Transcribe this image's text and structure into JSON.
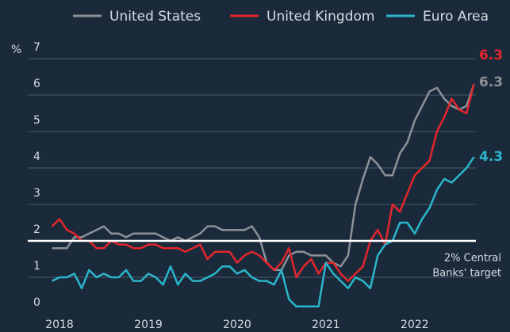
{
  "chart_data": {
    "type": "line",
    "y_label": "%",
    "categories": [
      null,
      "2018",
      null,
      null,
      null,
      null,
      null,
      null,
      null,
      null,
      null,
      null,
      null,
      "2019",
      null,
      null,
      null,
      null,
      null,
      null,
      null,
      null,
      null,
      null,
      null,
      "2020",
      null,
      null,
      null,
      null,
      null,
      null,
      null,
      null,
      null,
      null,
      null,
      "2021",
      null,
      null,
      null,
      null,
      null,
      null,
      null,
      null,
      null,
      null,
      null,
      "2022",
      null,
      null,
      null,
      null,
      null,
      null,
      null,
      null
    ],
    "series": [
      {
        "name": "United States",
        "color": "#8c9197",
        "end_label": "6.3",
        "values": [
          1.8,
          1.8,
          1.8,
          2.1,
          2.1,
          2.2,
          2.3,
          2.4,
          2.2,
          2.2,
          2.1,
          2.2,
          2.2,
          2.2,
          2.2,
          2.1,
          2.0,
          2.1,
          2.0,
          2.1,
          2.2,
          2.4,
          2.4,
          2.3,
          2.3,
          2.3,
          2.3,
          2.4,
          2.1,
          1.4,
          1.2,
          1.2,
          1.6,
          1.7,
          1.7,
          1.6,
          1.6,
          1.6,
          1.4,
          1.3,
          1.6,
          3.0,
          3.7,
          4.3,
          4.1,
          3.8,
          3.8,
          4.4,
          4.7,
          5.3,
          5.7,
          6.1,
          6.2,
          5.9,
          5.7,
          5.6,
          5.7,
          6.3
        ]
      },
      {
        "name": "United Kingdom",
        "color": "#e3262d",
        "end_label": "6.3",
        "values": [
          2.4,
          2.6,
          2.3,
          2.2,
          2.0,
          2.0,
          1.8,
          1.8,
          2.0,
          1.9,
          1.9,
          1.8,
          1.8,
          1.9,
          1.9,
          1.8,
          1.8,
          1.8,
          1.7,
          1.8,
          1.9,
          1.5,
          1.7,
          1.7,
          1.7,
          1.4,
          1.6,
          1.7,
          1.6,
          1.4,
          1.2,
          1.4,
          1.8,
          1.0,
          1.3,
          1.5,
          1.1,
          1.4,
          1.4,
          1.1,
          0.9,
          1.1,
          1.3,
          2.0,
          2.3,
          1.9,
          3.0,
          2.8,
          3.3,
          3.8,
          4.0,
          4.2,
          5.0,
          5.4,
          5.9,
          5.6,
          5.5,
          6.3
        ]
      },
      {
        "name": "Euro Area",
        "color": "#2bb5cc",
        "end_label": "4.3",
        "values": [
          0.9,
          1.0,
          1.0,
          1.1,
          0.7,
          1.2,
          1.0,
          1.1,
          1.0,
          1.0,
          1.2,
          0.9,
          0.9,
          1.1,
          1.0,
          0.8,
          1.3,
          0.8,
          1.1,
          0.9,
          0.9,
          1.0,
          1.1,
          1.3,
          1.3,
          1.1,
          1.2,
          1.0,
          0.9,
          0.9,
          0.8,
          1.2,
          0.4,
          0.2,
          0.2,
          0.2,
          0.2,
          1.4,
          1.1,
          0.9,
          0.7,
          1.0,
          0.9,
          0.7,
          1.6,
          1.9,
          2.0,
          2.5,
          2.5,
          2.2,
          2.6,
          2.9,
          3.4,
          3.7,
          3.6,
          3.8,
          4.0,
          4.3
        ]
      }
    ],
    "target_line": 2,
    "annotation": [
      "2% Central",
      "Banks' target"
    ],
    "ylim": [
      0,
      7
    ],
    "yticks": [
      0,
      1,
      2,
      3,
      4,
      5,
      6,
      7
    ],
    "grid": true
  }
}
